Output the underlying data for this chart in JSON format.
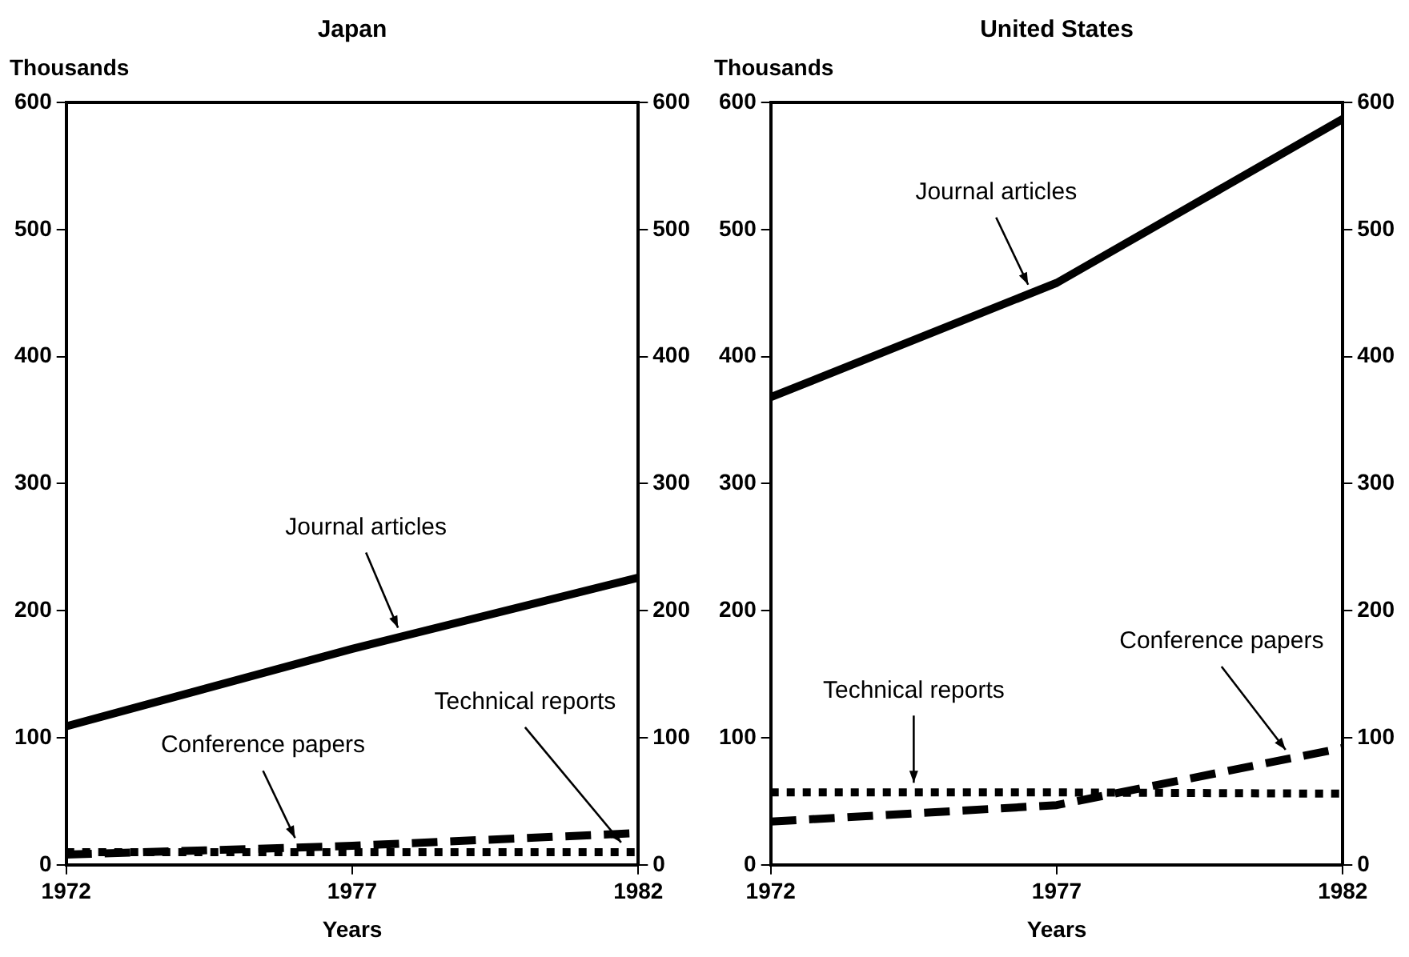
{
  "chart_data": [
    {
      "type": "line",
      "title": "Japan",
      "ylabel": "Thousands",
      "xlabel": "Years",
      "x": [
        1972,
        1977,
        1982
      ],
      "xlim": [
        1972,
        1982
      ],
      "xticks": [
        1972,
        1977,
        1982
      ],
      "ylim": [
        0,
        600
      ],
      "yticks": [
        0,
        100,
        200,
        300,
        400,
        500,
        600
      ],
      "y2lim": [
        0,
        600
      ],
      "y2ticks": [
        0,
        100,
        200,
        300,
        400,
        500,
        600
      ],
      "grid": false,
      "legend": false,
      "marker": "none",
      "series": [
        {
          "name": "Journal articles",
          "color": "#000000",
          "line_style": "solid",
          "values": [
            109,
            170,
            226
          ]
        },
        {
          "name": "Conference papers",
          "color": "#000000",
          "line_style": "dashed",
          "values": [
            8,
            15,
            25
          ]
        },
        {
          "name": "Technical reports",
          "color": "#000000",
          "line_style": "dotted",
          "values": [
            10,
            10,
            10
          ]
        }
      ]
    },
    {
      "type": "line",
      "title": "United States",
      "ylabel": "Thousands",
      "xlabel": "Years",
      "x": [
        1972,
        1977,
        1982
      ],
      "xlim": [
        1972,
        1982
      ],
      "xticks": [
        1972,
        1977,
        1982
      ],
      "ylim": [
        0,
        600
      ],
      "yticks": [
        0,
        100,
        200,
        300,
        400,
        500,
        600
      ],
      "y2lim": [
        0,
        600
      ],
      "y2ticks": [
        0,
        100,
        200,
        300,
        400,
        500,
        600
      ],
      "grid": false,
      "legend": false,
      "marker": "none",
      "series": [
        {
          "name": "Journal articles",
          "color": "#000000",
          "line_style": "solid",
          "values": [
            368,
            458,
            587
          ]
        },
        {
          "name": "Conference papers",
          "color": "#000000",
          "line_style": "dashed",
          "values": [
            34,
            47,
            92
          ]
        },
        {
          "name": "Technical reports",
          "color": "#000000",
          "line_style": "dotted",
          "values": [
            57,
            57,
            56
          ]
        }
      ]
    }
  ]
}
